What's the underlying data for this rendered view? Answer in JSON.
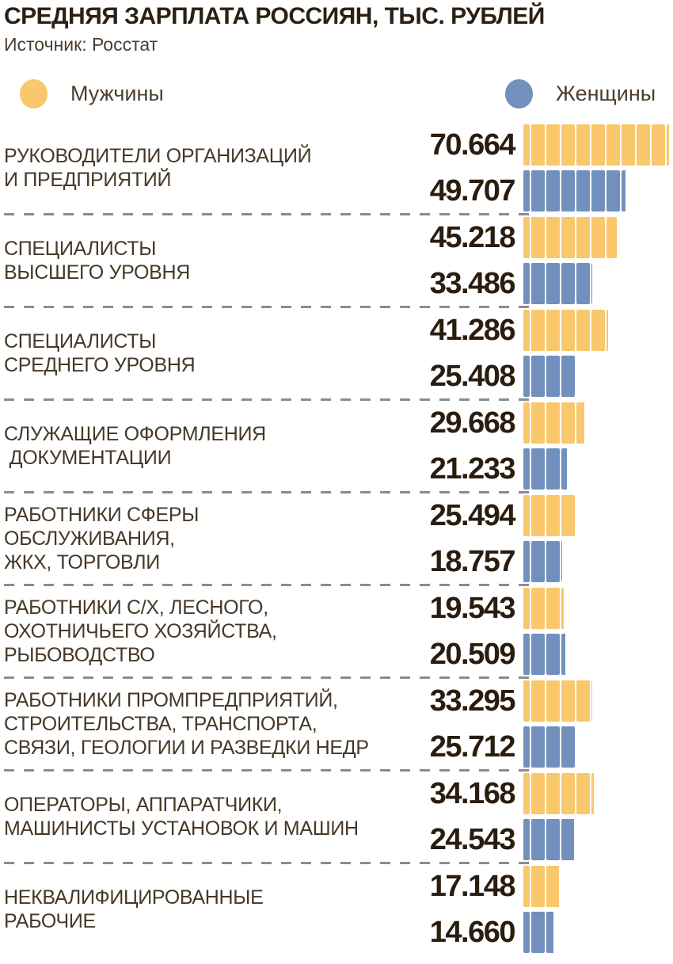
{
  "header": {
    "title": "СРЕДНЯЯ ЗАРПЛАТА РОССИЯН, ТЫС. РУБЛЕЙ",
    "source": "Источник: Росстат"
  },
  "legend": {
    "male": {
      "label": "Мужчины",
      "color": "#F9C76C"
    },
    "female": {
      "label": "Женщины",
      "color": "#7290BD"
    }
  },
  "chart_data": {
    "type": "bar",
    "orientation": "horizontal",
    "title": "СРЕДНЯЯ ЗАРПЛАТА РОССИЯН, ТЫС. РУБЛЕЙ",
    "source": "Источник: Росстат",
    "unit": "тыс. рублей",
    "xlim": [
      0,
      72
    ],
    "legend_position": "top",
    "grid": false,
    "series_names": [
      "Мужчины",
      "Женщины"
    ],
    "groups": [
      {
        "label_lines": [
          "РУКОВОДИТЕЛИ ОРГАНИЗАЦИЙ",
          "И ПРЕДПРИЯТИЙ"
        ],
        "male": 70.664,
        "female": 49.707,
        "male_display": "70.664",
        "female_display": "49.707"
      },
      {
        "label_lines": [
          "СПЕЦИАЛИСТЫ",
          "ВЫСШЕГО УРОВНЯ"
        ],
        "male": 45.218,
        "female": 33.486,
        "male_display": "45.218",
        "female_display": "33.486"
      },
      {
        "label_lines": [
          "СПЕЦИАЛИСТЫ",
          "СРЕДНЕГО УРОВНЯ"
        ],
        "male": 41.286,
        "female": 25.408,
        "male_display": "41.286",
        "female_display": "25.408"
      },
      {
        "label_lines": [
          "СЛУЖАЩИЕ ОФОРМЛЕНИЯ",
          " ДОКУМЕНТАЦИИ"
        ],
        "male": 29.668,
        "female": 21.233,
        "male_display": "29.668",
        "female_display": "21.233"
      },
      {
        "label_lines": [
          "РАБОТНИКИ СФЕРЫ",
          "ОБСЛУЖИВАНИЯ,",
          "ЖКХ, ТОРГОВЛИ"
        ],
        "male": 25.494,
        "female": 18.757,
        "male_display": "25.494",
        "female_display": "18.757"
      },
      {
        "label_lines": [
          "РАБОТНИКИ С/Х, ЛЕСНОГО,",
          "ОХОТНИЧЬЕГО ХОЗЯЙСТВА,",
          "РЫБОВОДСТВО"
        ],
        "male": 19.543,
        "female": 20.509,
        "male_display": "19.543",
        "female_display": "20.509"
      },
      {
        "label_lines": [
          "РАБОТНИКИ ПРОМПРЕДПРИЯТИЙ,",
          "СТРОИТЕЛЬСТВА, ТРАНСПОРТА,",
          "СВЯЗИ, ГЕОЛОГИИ И РАЗВЕДКИ НЕДР"
        ],
        "male": 33.295,
        "female": 25.712,
        "male_display": "33.295",
        "female_display": "25.712"
      },
      {
        "label_lines": [
          "ОПЕРАТОРЫ, АППАРАТЧИКИ,",
          "МАШИНИСТЫ УСТАНОВОК И МАШИН"
        ],
        "male": 34.168,
        "female": 24.543,
        "male_display": "34.168",
        "female_display": "24.543"
      },
      {
        "label_lines": [
          "НЕКВАЛИФИЦИРОВАННЫЕ",
          "РАБОЧИЕ"
        ],
        "male": 17.148,
        "female": 14.66,
        "male_display": "17.148",
        "female_display": "14.660"
      }
    ]
  }
}
